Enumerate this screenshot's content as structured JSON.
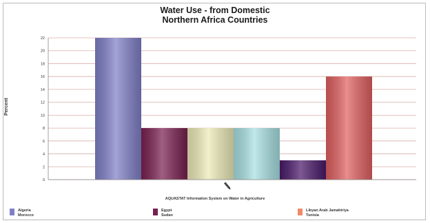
{
  "chart_data": {
    "type": "bar",
    "title": "Water Use - from Domestic Northern Africa Countries",
    "title_lines": [
      "Water Use - from Domestic",
      "Northern Africa Countries"
    ],
    "ylabel": "Percent",
    "xlabel": "AQUASTAT Information System on Water in Agriculture",
    "categories": [
      "Algeria",
      "Egypt",
      "Libyan Arab Jamahiriya",
      "Morocco",
      "Sudan",
      "Tunisia"
    ],
    "legend_labels": [
      [
        "Algeria",
        "Morocco"
      ],
      [
        "Egypt",
        "Sudan"
      ],
      [
        "Libyan Arab Jamahiriya",
        "Tunisia"
      ]
    ],
    "values": [
      22,
      8,
      8,
      8,
      3,
      16
    ],
    "colors": [
      "#8080c8",
      "#7a2050",
      "#ecebb8",
      "#a8e0e2",
      "#4a1a6a",
      "#e06060"
    ],
    "ylim": [
      0,
      22
    ],
    "yticks": [
      0,
      2,
      4,
      6,
      8,
      10,
      12,
      14,
      16,
      18,
      20,
      22
    ],
    "grid": true,
    "legend_position": "bottom"
  }
}
